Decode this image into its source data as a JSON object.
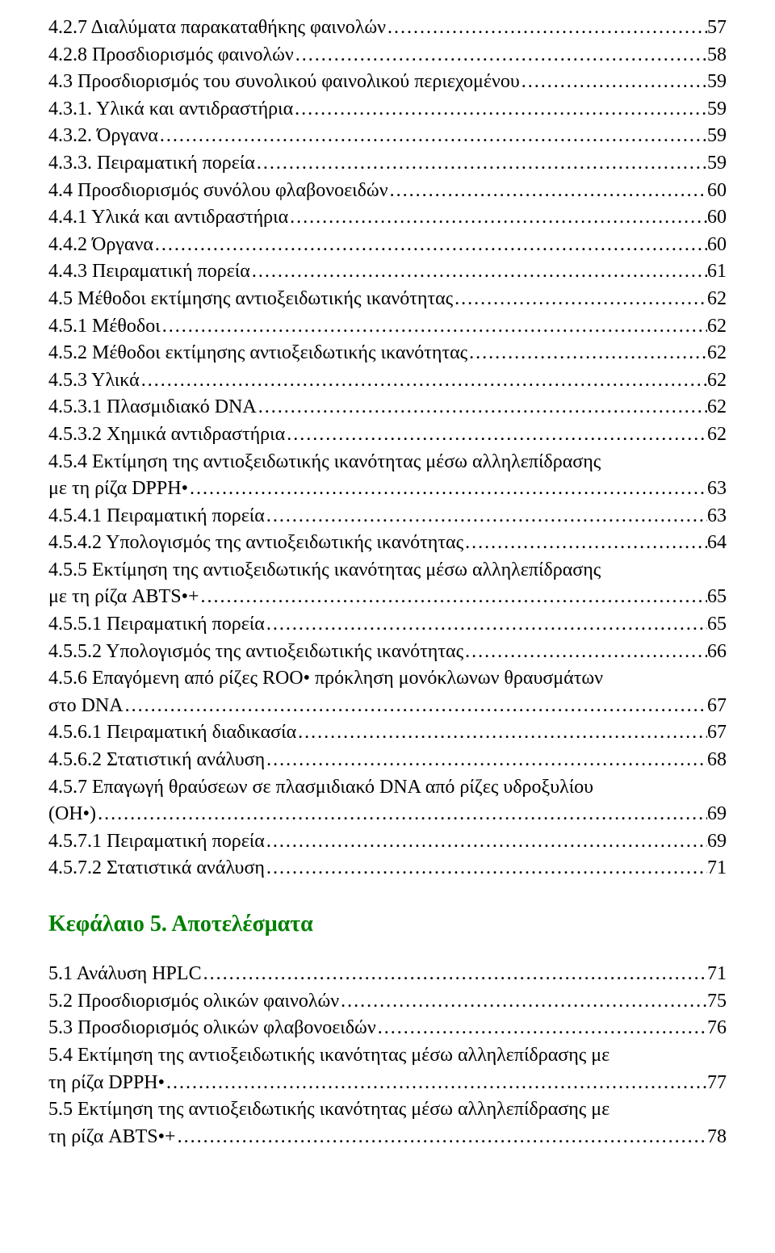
{
  "toc": {
    "entries": [
      {
        "label": "4.2.7 Διαλύματα παρακαταθήκης φαινολών",
        "leader": "dots",
        "page": "57"
      },
      {
        "label": "4.2.8 Προσδιορισμός φαινολών",
        "leader": "dots",
        "page": "58"
      },
      {
        "label": "4.3 Προσδιορισμός του συνολικού φαινολικού περιεχομένου",
        "leader": "dots",
        "page": "59"
      },
      {
        "label": "4.3.1. Υλικά και αντιδραστήρια",
        "leader": "dots",
        "page": "59"
      },
      {
        "label": "4.3.2. Όργανα",
        "leader": "dots",
        "page": "59"
      },
      {
        "label": "4.3.3. Πειραματική πορεία",
        "leader": "dots",
        "page": "59"
      },
      {
        "label": "4.4 Προσδιορισμός συνόλου φλαβονοειδών",
        "leader": "dots",
        "page": "60"
      },
      {
        "label": "4.4.1 Υλικά και αντιδραστήρια",
        "leader": "dots",
        "page": "60"
      },
      {
        "label": "4.4.2 Όργανα",
        "leader": "dots",
        "page": "60"
      },
      {
        "label": "4.4.3 Πειραματική πορεία",
        "leader": "dots",
        "page": "61"
      },
      {
        "label": "4.5 Μέθοδοι εκτίμησης αντιοξειδωτικής ικανότητας",
        "leader": "dots",
        "page": "62"
      },
      {
        "label": "4.5.1 Μέθοδοι",
        "leader": "dots",
        "page": "62"
      },
      {
        "label": "4.5.2 Μέθοδοι εκτίμησης αντιοξειδωτικής ικανότητας",
        "leader": "dots",
        "page": "62"
      },
      {
        "label": "4.5.3 Υλικά",
        "leader": "dots",
        "page": "62"
      },
      {
        "label": "4.5.3.1 Πλασμιδιακό DNA",
        "leader": "dots",
        "page": "62"
      },
      {
        "label": "4.5.3.2 Χημικά αντιδραστήρια",
        "leader": "dots",
        "page": "62"
      },
      {
        "wrap": true,
        "first_line": "4.5.4 Εκτίμηση της αντιοξειδωτικής ικανότητας μέσω αλληλεπίδρασης",
        "label": "με τη ρίζα DPPH•",
        "leader": "dots",
        "page": "63"
      },
      {
        "label": "4.5.4.1 Πειραματική πορεία",
        "leader": "dots",
        "page": "63"
      },
      {
        "label": "4.5.4.2 Υπολογισμός της αντιοξειδωτικής ικανότητας",
        "leader": "dots",
        "page": "64"
      },
      {
        "wrap": true,
        "first_line": "4.5.5 Εκτίμηση της αντιοξειδωτικής ικανότητας μέσω αλληλεπίδρασης",
        "label": "με τη ρίζα ABTS•+",
        "leader": "dots",
        "page": "65"
      },
      {
        "label": "4.5.5.1 Πειραματική πορεία",
        "leader": "dots",
        "page": "65"
      },
      {
        "label": "4.5.5.2  Υπολογισμός της αντιοξειδωτικής ικανότητας",
        "leader": "dots",
        "page": "66"
      },
      {
        "wrap": true,
        "first_line": "4.5.6 Επαγόμενη  από ρίζες ROO• πρόκληση μονόκλωνων θραυσμάτων",
        "label": "στο DNA",
        "leader": "dots",
        "page": "67"
      },
      {
        "label": "4.5.6.1 Πειραματική διαδικασία",
        "leader": "dots",
        "page": "67"
      },
      {
        "label": "4.5.6.2 Στατιστική ανάλυση",
        "leader": "dots",
        "page": "68"
      },
      {
        "wrap": true,
        "first_line": "4.5.7 Επαγωγή θραύσεων σε πλασμιδιακό DNA από ρίζες υδροξυλίου",
        "label": "(OH•)",
        "leader": "dots",
        "page": "69"
      },
      {
        "label": "4.5.7.1 Πειραματική πορεία",
        "leader": "dots",
        "page": "69"
      },
      {
        "label": "4.5.7.2 Στατιστικά ανάλυση",
        "leader": "dots",
        "page": "71"
      }
    ]
  },
  "chapter_heading": "Κεφάλαιο 5. Αποτελέσματα",
  "toc2": {
    "entries": [
      {
        "label": "5.1 Ανάλυση HPLC",
        "leader": "dots",
        "page": "71"
      },
      {
        "label": "5.2 Προσδιορισμός ολικών φαινολών",
        "leader": "dots",
        "page": "75"
      },
      {
        "label": "5.3 Προσδιορισμός ολικών φλαβονοειδών",
        "leader": "dots",
        "page": "76"
      },
      {
        "wrap": true,
        "first_line": "5.4 Εκτίμηση της αντιοξειδωτικής ικανότητας μέσω αλληλεπίδρασης με",
        "label": "τη ρίζα DPPH•",
        "leader": "dots",
        "page": "77"
      },
      {
        "wrap": true,
        "first_line": "5.5 Εκτίμηση της αντιοξειδωτικής ικανότητας μέσω αλληλεπίδρασης με",
        "label": "τη ρίζα ABTS•+",
        "leader": "dots",
        "page": "78"
      }
    ]
  }
}
